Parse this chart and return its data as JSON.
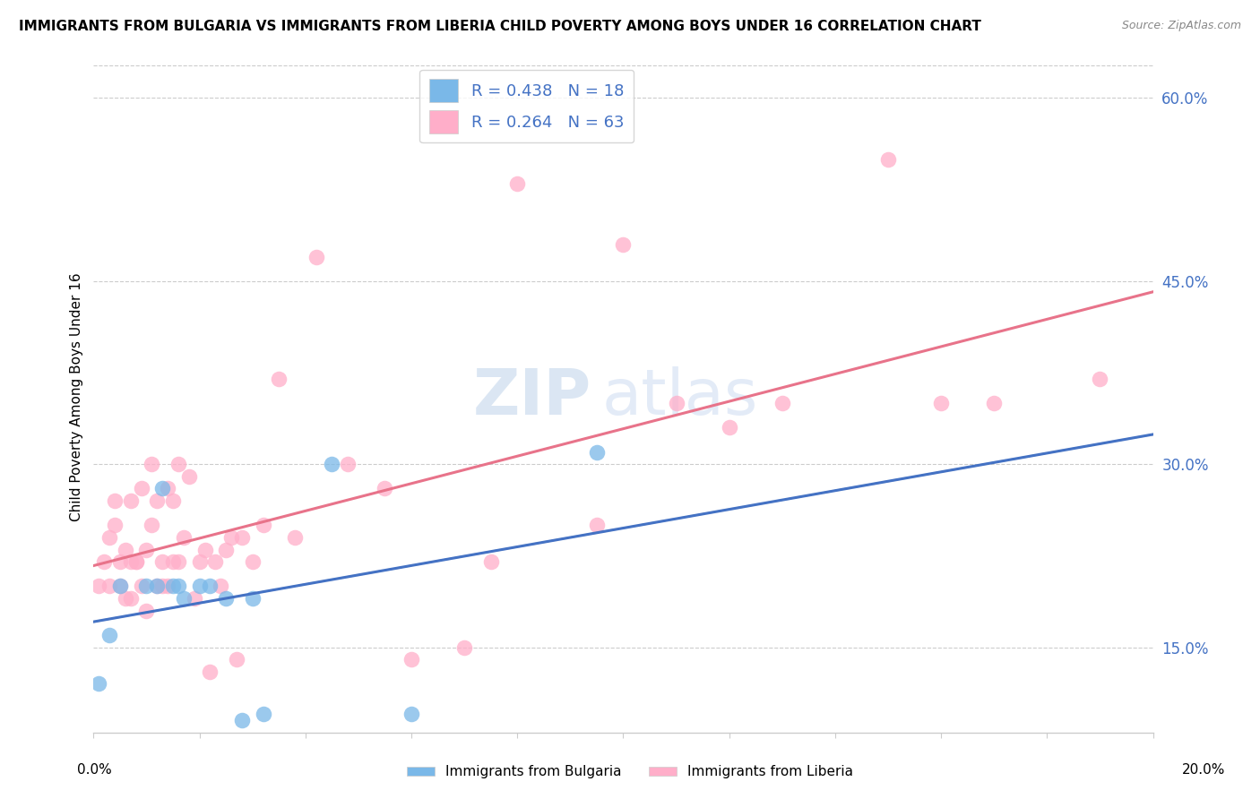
{
  "title": "IMMIGRANTS FROM BULGARIA VS IMMIGRANTS FROM LIBERIA CHILD POVERTY AMONG BOYS UNDER 16 CORRELATION CHART",
  "source": "Source: ZipAtlas.com",
  "ylabel": "Child Poverty Among Boys Under 16",
  "xlim": [
    0.0,
    0.2
  ],
  "ylim": [
    0.08,
    0.63
  ],
  "right_yticks": [
    0.15,
    0.3,
    0.45,
    0.6
  ],
  "right_yticklabels": [
    "15.0%",
    "30.0%",
    "45.0%",
    "60.0%"
  ],
  "grid_color": "#cccccc",
  "background_color": "#ffffff",
  "watermark_text": "ZIP",
  "watermark_text2": "atlas",
  "bulgaria_color": "#7ab8e8",
  "liberia_color": "#ffaec9",
  "bulgaria_line_color": "#4472c4",
  "liberia_line_color": "#e8738a",
  "bulgaria_R": 0.438,
  "bulgaria_N": 18,
  "liberia_R": 0.264,
  "liberia_N": 63,
  "legend_label_bulgaria": "Immigrants from Bulgaria",
  "legend_label_liberia": "Immigrants from Liberia",
  "bulgaria_scatter_x": [
    0.001,
    0.003,
    0.005,
    0.01,
    0.012,
    0.013,
    0.015,
    0.016,
    0.017,
    0.02,
    0.022,
    0.025,
    0.028,
    0.03,
    0.032,
    0.045,
    0.06,
    0.095
  ],
  "bulgaria_scatter_y": [
    0.12,
    0.16,
    0.2,
    0.2,
    0.2,
    0.28,
    0.2,
    0.2,
    0.19,
    0.2,
    0.2,
    0.19,
    0.09,
    0.19,
    0.095,
    0.3,
    0.095,
    0.31
  ],
  "liberia_scatter_x": [
    0.001,
    0.002,
    0.003,
    0.003,
    0.004,
    0.004,
    0.005,
    0.005,
    0.006,
    0.006,
    0.007,
    0.007,
    0.007,
    0.008,
    0.008,
    0.009,
    0.009,
    0.01,
    0.01,
    0.011,
    0.011,
    0.012,
    0.012,
    0.013,
    0.013,
    0.014,
    0.014,
    0.015,
    0.015,
    0.016,
    0.016,
    0.017,
    0.018,
    0.019,
    0.02,
    0.021,
    0.022,
    0.023,
    0.024,
    0.025,
    0.026,
    0.027,
    0.028,
    0.03,
    0.032,
    0.035,
    0.038,
    0.042,
    0.048,
    0.055,
    0.06,
    0.07,
    0.075,
    0.08,
    0.095,
    0.1,
    0.11,
    0.12,
    0.13,
    0.15,
    0.16,
    0.17,
    0.19
  ],
  "liberia_scatter_y": [
    0.2,
    0.22,
    0.2,
    0.24,
    0.25,
    0.27,
    0.2,
    0.22,
    0.19,
    0.23,
    0.19,
    0.22,
    0.27,
    0.22,
    0.22,
    0.2,
    0.28,
    0.18,
    0.23,
    0.25,
    0.3,
    0.2,
    0.27,
    0.2,
    0.22,
    0.2,
    0.28,
    0.22,
    0.27,
    0.22,
    0.3,
    0.24,
    0.29,
    0.19,
    0.22,
    0.23,
    0.13,
    0.22,
    0.2,
    0.23,
    0.24,
    0.14,
    0.24,
    0.22,
    0.25,
    0.37,
    0.24,
    0.47,
    0.3,
    0.28,
    0.14,
    0.15,
    0.22,
    0.53,
    0.25,
    0.48,
    0.35,
    0.33,
    0.35,
    0.55,
    0.35,
    0.35,
    0.37
  ],
  "tick_color": "#4472c4",
  "axis_label_color": "#000000",
  "title_fontsize": 11,
  "label_fontsize": 11,
  "tick_fontsize": 12
}
